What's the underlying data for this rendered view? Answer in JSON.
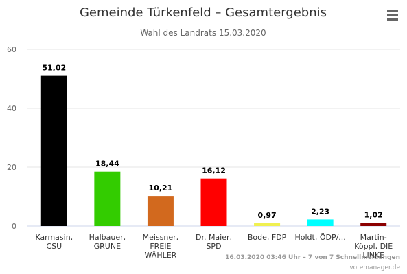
{
  "chart_data": {
    "type": "bar",
    "title": "Gemeinde Türkenfeld – Gesamtergebnis",
    "subtitle": "Wahl des Landrats 15.03.2020",
    "categories": [
      [
        "Karmasin,",
        "CSU"
      ],
      [
        "Halbauer,",
        "GRÜNE"
      ],
      [
        "Meissner,",
        "FREIE",
        "WÄHLER"
      ],
      [
        "Dr. Maier,",
        "SPD"
      ],
      [
        "Bode, FDP"
      ],
      [
        "Holdt, ÖDP/..."
      ],
      [
        "Martin-",
        "Köppl, DIE",
        "LINKE"
      ]
    ],
    "values": [
      51.02,
      18.44,
      10.21,
      16.12,
      0.97,
      2.23,
      1.02
    ],
    "value_labels": [
      "51,02",
      "18,44",
      "10,21",
      "16,12",
      "0,97",
      "2,23",
      "1,02"
    ],
    "colors": [
      "#000000",
      "#33cc00",
      "#d2691e",
      "#ff0000",
      "#f0f050",
      "#00ffff",
      "#8b0000"
    ],
    "ylim": [
      0,
      60
    ],
    "yticks": [
      "0",
      "20",
      "40",
      "60"
    ],
    "grid": true,
    "legend": "none"
  },
  "credits": {
    "line1": "16.03.2020 03:46 Uhr – 7 von 7 Schnellmeldungen",
    "line2": "votemanager.de"
  },
  "menu_icon": "hamburger-menu-icon"
}
